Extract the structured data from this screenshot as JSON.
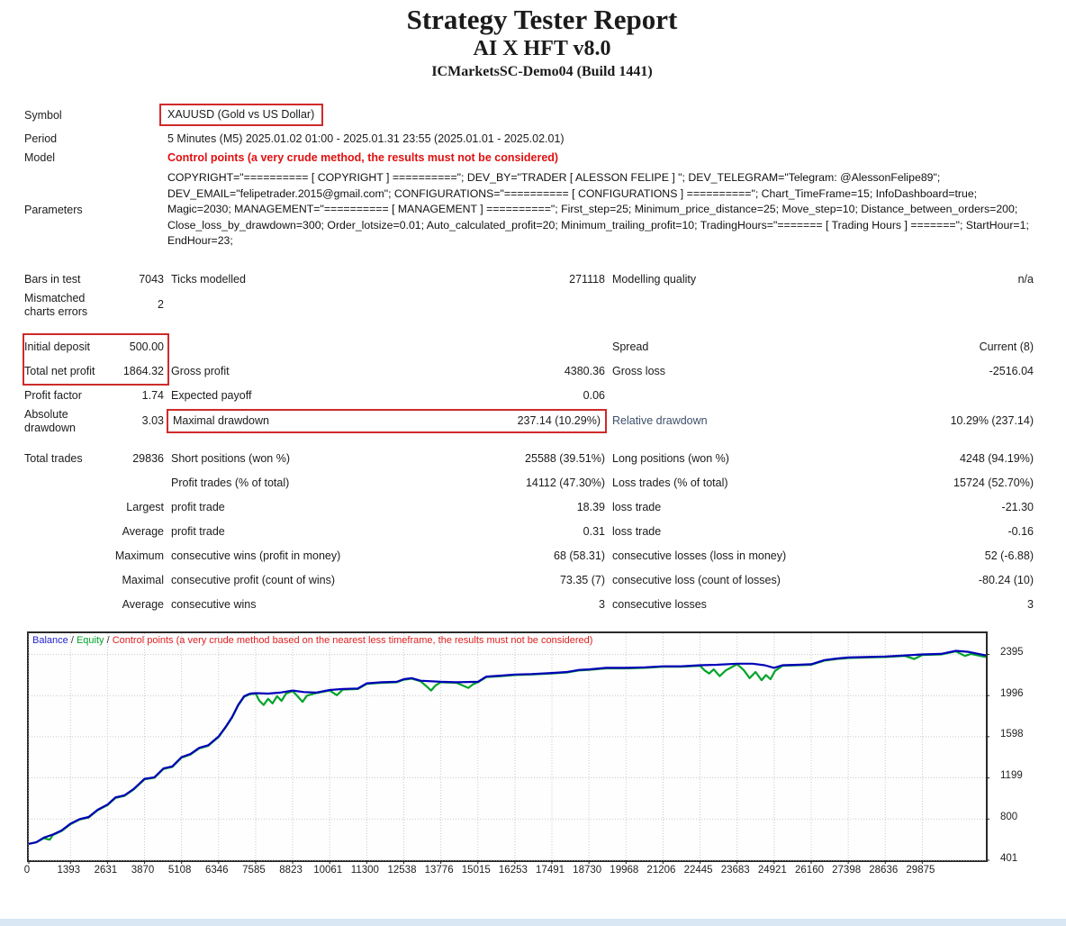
{
  "header": {
    "title": "Strategy Tester Report",
    "subtitle": "AI X HFT v8.0",
    "server": "ICMarketsSC-Demo04 (Build 1441)"
  },
  "info": {
    "symbol_label": "Symbol",
    "symbol_value": "XAUUSD (Gold vs US Dollar)",
    "period_label": "Period",
    "period_value": "5 Minutes (M5) 2025.01.02 01:00 - 2025.01.31 23:55 (2025.01.01 - 2025.02.01)",
    "model_label": "Model",
    "model_value": "Control points (a very crude method, the results must not be considered)",
    "parameters_label": "Parameters",
    "parameters_value": "COPYRIGHT=\"========== [ COPYRIGHT ] ==========\"; DEV_BY=\"TRADER [ ALESSON FELIPE ] \"; DEV_TELEGRAM=\"Telegram: @AlessonFelipe89\"; DEV_EMAIL=\"felipetrader.2015@gmail.com\"; CONFIGURATIONS=\"========== [ CONFIGURATIONS ] ==========\"; Chart_TimeFrame=15; InfoDashboard=true; Magic=2030; MANAGEMENT=\"========== [ MANAGEMENT ] ==========\"; First_step=25; Minimum_price_distance=25; Move_step=10; Distance_between_orders=200; Close_loss_by_drawdown=300; Order_lotsize=0.01; Auto_calculated_profit=20; Minimum_trailing_profit=10; TradingHours=\"======= [ Trading Hours ] =======\"; StartHour=1; EndHour=23;"
  },
  "stats": {
    "rows": [
      {
        "l1": "Bars in test",
        "v1": "7043",
        "l2": "Ticks modelled",
        "v2": "271118",
        "l3": "Modelling quality",
        "v3": "n/a"
      },
      {
        "l1": "Mismatched charts errors",
        "v1": "2",
        "l2": "",
        "v2": "",
        "l3": "",
        "v3": ""
      },
      {
        "l1": "Initial deposit",
        "v1": "500.00",
        "l2": "",
        "v2": "",
        "l3": "Spread",
        "v3": "Current (8)"
      },
      {
        "l1": "Total net profit",
        "v1": "1864.32",
        "l2": "Gross profit",
        "v2": "4380.36",
        "l3": "Gross loss",
        "v3": "-2516.04"
      },
      {
        "l1": "Profit factor",
        "v1": "1.74",
        "l2": "Expected payoff",
        "v2": "0.06",
        "l3": "",
        "v3": ""
      },
      {
        "l1": "Absolute drawdown",
        "v1": "3.03",
        "l2": "Maximal drawdown",
        "v2": "237.14 (10.29%)",
        "l3": "Relative drawdown",
        "v3": "10.29% (237.14)"
      },
      {
        "l1": "Total trades",
        "v1": "29836",
        "l2": "Short positions (won %)",
        "v2": "25588 (39.51%)",
        "l3": "Long positions (won %)",
        "v3": "4248 (94.19%)"
      },
      {
        "l1": "",
        "v1": "",
        "l2": "Profit trades (% of total)",
        "v2": "14112 (47.30%)",
        "l3": "Loss trades (% of total)",
        "v3": "15724 (52.70%)"
      },
      {
        "l1": "",
        "v1": "Largest",
        "l2": "profit trade",
        "v2": "18.39",
        "l3": "loss trade",
        "v3": "-21.30"
      },
      {
        "l1": "",
        "v1": "Average",
        "l2": "profit trade",
        "v2": "0.31",
        "l3": "loss trade",
        "v3": "-0.16"
      },
      {
        "l1": "",
        "v1": "Maximum",
        "l2": "consecutive wins (profit in money)",
        "v2": "68 (58.31)",
        "l3": "consecutive losses (loss in money)",
        "v3": "52 (-6.88)"
      },
      {
        "l1": "",
        "v1": "Maximal",
        "l2": "consecutive profit (count of wins)",
        "v2": "73.35 (7)",
        "l3": "consecutive loss (count of losses)",
        "v3": "-80.24 (10)"
      },
      {
        "l1": "",
        "v1": "Average",
        "l2": "consecutive wins",
        "v2": "3",
        "l3": "consecutive losses",
        "v3": "3"
      }
    ]
  },
  "chart_data": {
    "type": "line",
    "title": "Balance / Equity curve",
    "legend": [
      {
        "label": "Balance",
        "color": "#2222cc"
      },
      {
        "label": "Equity",
        "color": "#00a32a"
      },
      {
        "label": "Control points (a very crude method based on the nearest less timeframe, the results must not be considered)",
        "color": "#e02020"
      }
    ],
    "legend_separator": " / ",
    "x_ticks": [
      0,
      1393,
      2631,
      3870,
      5108,
      6346,
      7585,
      8823,
      10061,
      11300,
      12538,
      13776,
      15015,
      16253,
      17491,
      18730,
      19968,
      21206,
      22445,
      23683,
      24921,
      26160,
      27398,
      28636,
      29875
    ],
    "y_ticks": [
      401,
      800,
      1199,
      1598,
      1996,
      2395
    ],
    "xlim": [
      0,
      32000
    ],
    "ylim": [
      401,
      2600
    ],
    "grid": true,
    "legend_position": "top-left",
    "series": [
      {
        "name": "Equity",
        "color": "#00a32a",
        "points": [
          [
            0,
            560
          ],
          [
            250,
            575
          ],
          [
            500,
            615
          ],
          [
            700,
            600
          ],
          [
            800,
            645
          ],
          [
            1100,
            685
          ],
          [
            1393,
            750
          ],
          [
            1700,
            795
          ],
          [
            2000,
            815
          ],
          [
            2300,
            885
          ],
          [
            2631,
            935
          ],
          [
            2900,
            1005
          ],
          [
            3200,
            1025
          ],
          [
            3500,
            1085
          ],
          [
            3870,
            1185
          ],
          [
            4200,
            1200
          ],
          [
            4500,
            1285
          ],
          [
            4800,
            1305
          ],
          [
            5108,
            1395
          ],
          [
            5400,
            1425
          ],
          [
            5700,
            1485
          ],
          [
            6000,
            1510
          ],
          [
            6346,
            1595
          ],
          [
            6600,
            1695
          ],
          [
            6800,
            1785
          ],
          [
            7000,
            1900
          ],
          [
            7200,
            1985
          ],
          [
            7400,
            2010
          ],
          [
            7585,
            2015
          ],
          [
            7700,
            1950
          ],
          [
            7850,
            1905
          ],
          [
            8000,
            1965
          ],
          [
            8150,
            1920
          ],
          [
            8300,
            1990
          ],
          [
            8450,
            1945
          ],
          [
            8600,
            2015
          ],
          [
            8823,
            2040
          ],
          [
            9000,
            1985
          ],
          [
            9150,
            1935
          ],
          [
            9300,
            1995
          ],
          [
            9600,
            2020
          ],
          [
            10061,
            2045
          ],
          [
            10300,
            2000
          ],
          [
            10500,
            2055
          ],
          [
            11000,
            2060
          ],
          [
            11300,
            2110
          ],
          [
            11800,
            2120
          ],
          [
            12300,
            2125
          ],
          [
            12538,
            2150
          ],
          [
            12800,
            2160
          ],
          [
            13100,
            2135
          ],
          [
            13300,
            2085
          ],
          [
            13450,
            2045
          ],
          [
            13600,
            2095
          ],
          [
            13776,
            2125
          ],
          [
            14300,
            2120
          ],
          [
            14700,
            2070
          ],
          [
            14850,
            2105
          ],
          [
            15015,
            2125
          ],
          [
            15300,
            2175
          ],
          [
            15800,
            2185
          ],
          [
            16253,
            2195
          ],
          [
            16800,
            2200
          ],
          [
            17491,
            2210
          ],
          [
            18000,
            2220
          ],
          [
            18400,
            2240
          ],
          [
            18730,
            2245
          ],
          [
            19300,
            2260
          ],
          [
            19968,
            2260
          ],
          [
            20600,
            2265
          ],
          [
            21206,
            2275
          ],
          [
            21800,
            2275
          ],
          [
            22445,
            2285
          ],
          [
            22600,
            2240
          ],
          [
            22750,
            2210
          ],
          [
            22900,
            2250
          ],
          [
            23100,
            2185
          ],
          [
            23300,
            2240
          ],
          [
            23683,
            2300
          ],
          [
            23900,
            2245
          ],
          [
            24100,
            2165
          ],
          [
            24300,
            2225
          ],
          [
            24500,
            2145
          ],
          [
            24650,
            2195
          ],
          [
            24800,
            2155
          ],
          [
            24950,
            2235
          ],
          [
            25200,
            2285
          ],
          [
            25700,
            2290
          ],
          [
            26160,
            2295
          ],
          [
            26600,
            2335
          ],
          [
            27000,
            2350
          ],
          [
            27398,
            2360
          ],
          [
            28000,
            2365
          ],
          [
            28636,
            2370
          ],
          [
            29300,
            2380
          ],
          [
            29600,
            2350
          ],
          [
            29875,
            2390
          ],
          [
            30500,
            2395
          ],
          [
            31000,
            2425
          ],
          [
            31300,
            2380
          ],
          [
            31500,
            2400
          ],
          [
            32000,
            2370
          ]
        ]
      },
      {
        "name": "Balance",
        "color": "#0000b8",
        "points": [
          [
            0,
            560
          ],
          [
            250,
            575
          ],
          [
            500,
            620
          ],
          [
            800,
            650
          ],
          [
            1100,
            690
          ],
          [
            1393,
            755
          ],
          [
            1700,
            800
          ],
          [
            2000,
            820
          ],
          [
            2300,
            890
          ],
          [
            2631,
            940
          ],
          [
            2900,
            1010
          ],
          [
            3200,
            1030
          ],
          [
            3500,
            1090
          ],
          [
            3870,
            1190
          ],
          [
            4200,
            1205
          ],
          [
            4500,
            1290
          ],
          [
            4800,
            1310
          ],
          [
            5108,
            1400
          ],
          [
            5400,
            1430
          ],
          [
            5700,
            1490
          ],
          [
            6000,
            1515
          ],
          [
            6346,
            1600
          ],
          [
            6600,
            1700
          ],
          [
            6800,
            1790
          ],
          [
            7000,
            1905
          ],
          [
            7200,
            1990
          ],
          [
            7400,
            2015
          ],
          [
            7585,
            2020
          ],
          [
            8000,
            2015
          ],
          [
            8400,
            2025
          ],
          [
            8823,
            2045
          ],
          [
            9200,
            2030
          ],
          [
            9600,
            2025
          ],
          [
            10061,
            2050
          ],
          [
            10500,
            2060
          ],
          [
            11000,
            2065
          ],
          [
            11300,
            2115
          ],
          [
            11800,
            2125
          ],
          [
            12300,
            2130
          ],
          [
            12538,
            2155
          ],
          [
            12800,
            2165
          ],
          [
            13100,
            2140
          ],
          [
            13776,
            2130
          ],
          [
            14300,
            2125
          ],
          [
            15015,
            2130
          ],
          [
            15300,
            2180
          ],
          [
            15800,
            2190
          ],
          [
            16253,
            2200
          ],
          [
            16800,
            2205
          ],
          [
            17491,
            2215
          ],
          [
            18000,
            2225
          ],
          [
            18400,
            2245
          ],
          [
            18730,
            2250
          ],
          [
            19300,
            2265
          ],
          [
            19968,
            2265
          ],
          [
            20600,
            2270
          ],
          [
            21206,
            2280
          ],
          [
            21800,
            2280
          ],
          [
            22445,
            2290
          ],
          [
            23000,
            2295
          ],
          [
            23683,
            2305
          ],
          [
            24200,
            2305
          ],
          [
            24600,
            2290
          ],
          [
            24921,
            2265
          ],
          [
            25200,
            2290
          ],
          [
            25700,
            2295
          ],
          [
            26160,
            2300
          ],
          [
            26600,
            2340
          ],
          [
            27000,
            2355
          ],
          [
            27398,
            2365
          ],
          [
            28000,
            2370
          ],
          [
            28636,
            2375
          ],
          [
            29300,
            2385
          ],
          [
            29875,
            2395
          ],
          [
            30500,
            2400
          ],
          [
            31000,
            2430
          ],
          [
            31400,
            2420
          ],
          [
            32000,
            2385
          ]
        ]
      }
    ]
  }
}
